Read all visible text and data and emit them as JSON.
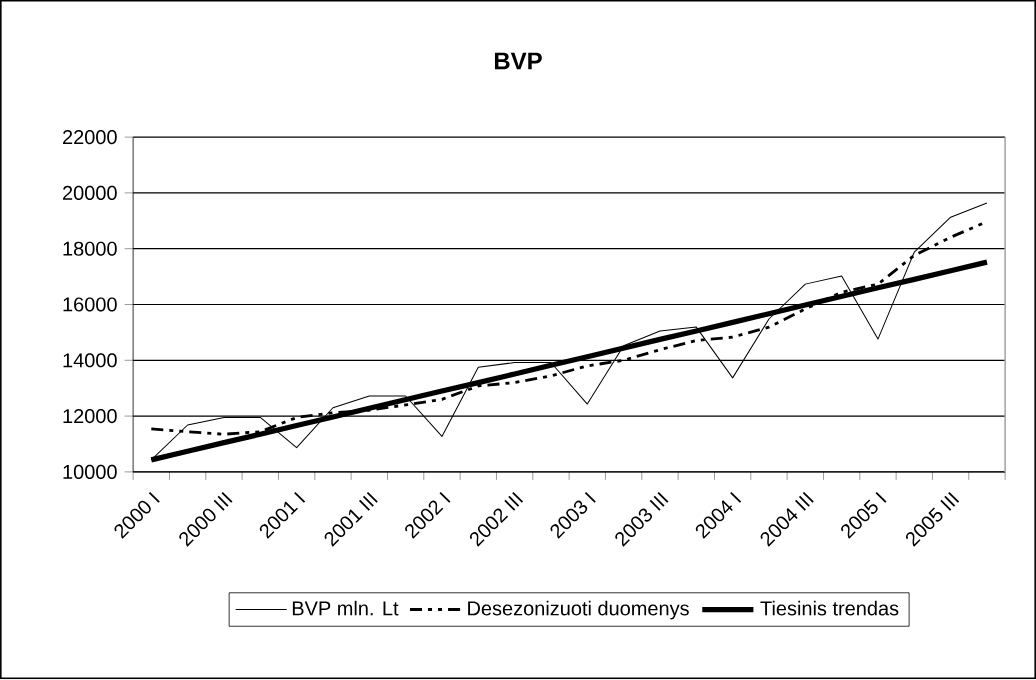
{
  "chart_data": {
    "type": "line",
    "title": "BVP",
    "categories": [
      "2000 I",
      null,
      "2000 III",
      null,
      "2001 I",
      null,
      "2001 III",
      null,
      "2002 I",
      null,
      "2002 III",
      null,
      "2003 I",
      null,
      "2003 III",
      null,
      "2004 I",
      null,
      "2004 III",
      null,
      "2005 I",
      null,
      "2005 III",
      null
    ],
    "series": [
      {
        "name": "BVP mln. Lt",
        "color": "#000000",
        "line_style": "solid",
        "values": [
          10430,
          11680,
          11950,
          11950,
          10870,
          12300,
          12720,
          12720,
          11270,
          13750,
          13920,
          13920,
          12430,
          14520,
          15050,
          15190,
          13370,
          15480,
          16730,
          17020,
          14760,
          17880,
          19130,
          19640
        ]
      },
      {
        "name": "Desezonizuoti duomenys",
        "color": "#000000",
        "line_style": "dashed",
        "values": [
          11540,
          11440,
          11350,
          11440,
          11950,
          12120,
          12210,
          12400,
          12600,
          13080,
          13200,
          13440,
          13800,
          14000,
          14380,
          14710,
          14830,
          15190,
          15840,
          16440,
          16730,
          17760,
          18410,
          18970
        ]
      },
      {
        "name": "Tiesinis trendas",
        "color": "#000000",
        "line_style": "solid",
        "values": [
          10430,
          10740,
          11050,
          11350,
          11660,
          11970,
          12280,
          12590,
          12900,
          13200,
          13510,
          13820,
          14130,
          14440,
          14750,
          15050,
          15360,
          15670,
          15980,
          16290,
          16600,
          16900,
          17210,
          17520
        ]
      }
    ],
    "ylim": [
      10000,
      22000
    ],
    "yticks": [
      10000,
      12000,
      14000,
      16000,
      18000,
      20000,
      22000
    ],
    "grid": "y",
    "legend": "bottom",
    "marker": "none"
  }
}
